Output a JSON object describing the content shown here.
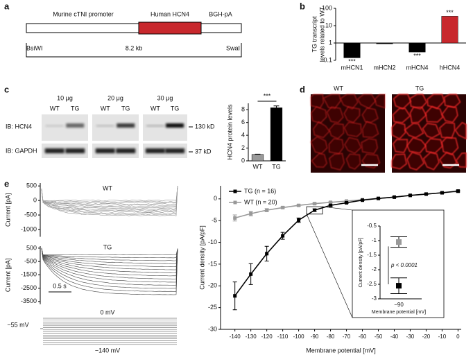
{
  "panel_labels": [
    "a",
    "b",
    "c",
    "d",
    "e"
  ],
  "construct": {
    "promoter": "Murine cTNI promoter",
    "gene": "Human HCN4",
    "polya": "BGH-pA",
    "site_left": "BsiWI",
    "length": "8.2 kb",
    "site_right": "SwaI"
  },
  "blot": {
    "amounts": [
      "10 μg",
      "20 μg",
      "30 μg"
    ],
    "lanes": [
      "WT",
      "TG",
      "WT",
      "TG",
      "WT",
      "TG"
    ],
    "probes": [
      "IB: HCN4",
      "IB: GAPDH"
    ],
    "sizes": [
      "130 kD",
      "37 kD"
    ]
  },
  "micrographs": {
    "labels": [
      "WT",
      "TG"
    ]
  },
  "traces": {
    "wt": {
      "label": "WT",
      "ylabel": "Current [pA]",
      "ylim": [
        -1250,
        600
      ],
      "yticks": [
        500,
        0,
        -500,
        -1000
      ]
    },
    "tg": {
      "label": "TG",
      "ylabel": "Current [pA]",
      "ylim": [
        -3700,
        650
      ],
      "yticks": [
        500,
        -500,
        -1500,
        -2500,
        -3500
      ]
    },
    "scale_bar": "0.5 s",
    "protocol": {
      "top": "0 mV",
      "hold": "−55 mV",
      "bottom": "−140 mV"
    }
  },
  "chart_data": [
    {
      "type": "bar",
      "log_scale": true,
      "ylabel": [
        "TG transcript",
        "levels related to WT"
      ],
      "categories": [
        "mHCN1",
        "mHCN2",
        "mHCN4",
        "hHCN4"
      ],
      "values": [
        0.14,
        0.9,
        0.3,
        35
      ],
      "colors": [
        "#000000",
        "#000000",
        "#000000",
        "#c8282d"
      ],
      "ylim": [
        0.1,
        100
      ],
      "yticks": [
        0.1,
        1,
        10,
        100
      ],
      "annotations": [
        {
          "label": "***",
          "category": "mHCN1"
        },
        {
          "label": "***",
          "category": "mHCN4"
        },
        {
          "label": "***",
          "category": "hHCN4"
        }
      ]
    },
    {
      "type": "bar",
      "ylabel": "HCN4 protein levels",
      "categories": [
        "WT",
        "TG"
      ],
      "values": [
        1,
        8.3
      ],
      "errors": [
        0.05,
        0.3
      ],
      "colors": [
        "#999999",
        "#000000"
      ],
      "ylim": [
        0,
        9
      ],
      "yticks": [
        0,
        2,
        4,
        6,
        8
      ],
      "annotations": [
        {
          "label": "***"
        }
      ]
    },
    {
      "type": "line",
      "xlabel": "Membrane potential [mV]",
      "ylabel": "Current density [pA/pF]",
      "x": [
        -140,
        -130,
        -120,
        -110,
        -100,
        -90,
        -80,
        -70,
        -60,
        -50,
        -40,
        -30,
        -20,
        -10,
        0
      ],
      "series": [
        {
          "name": "TG (n = 16)",
          "color": "#000000",
          "values": [
            -22.3,
            -17.3,
            -12.6,
            -8.5,
            -4.9,
            -2.6,
            -1.5,
            -0.9,
            -0.3,
            0.1,
            0.4,
            0.8,
            1.1,
            1.4,
            1.8
          ],
          "errors": [
            3.2,
            2.4,
            1.7,
            0.8,
            0.5,
            0.3,
            0.2,
            0.15,
            0.1,
            0.1,
            0.1,
            0.1,
            0.1,
            0.15,
            0.2
          ]
        },
        {
          "name": "WT (n = 20)",
          "color": "#999999",
          "values": [
            -4.4,
            -3.4,
            -2.6,
            -2.0,
            -1.5,
            -1.1,
            -0.8,
            -0.5,
            -0.2,
            0.1,
            0.4,
            0.8,
            1.1,
            1.4,
            1.7
          ],
          "errors": [
            0.7,
            0.5,
            0.35,
            0.25,
            0.2,
            0.2,
            0.15,
            0.1,
            0.1,
            0.1,
            0.1,
            0.1,
            0.1,
            0.15,
            0.2
          ]
        }
      ],
      "xlim": [
        -149,
        2
      ],
      "ylim": [
        -30,
        3
      ],
      "xticks": [
        -140,
        -130,
        -120,
        -110,
        -100,
        -90,
        -80,
        -70,
        -60,
        -50,
        -40,
        -30,
        -20,
        -10,
        0
      ],
      "yticks": [
        0,
        -5,
        -10,
        -15,
        -20,
        -25,
        -30
      ],
      "legend": "upper left"
    },
    {
      "type": "errorbar",
      "xlabel": "Membrane potential [mV]",
      "ylabel": "Current density [pA/pF]",
      "categories": [
        "−90"
      ],
      "series": [
        {
          "name": "WT",
          "color": "#999999",
          "values": [
            -1.05
          ],
          "errors": [
            0.18
          ]
        },
        {
          "name": "TG",
          "color": "#000000",
          "values": [
            -2.55
          ],
          "errors": [
            0.27
          ]
        }
      ],
      "ylim": [
        -3,
        -0.5
      ],
      "yticks": [
        -0.5,
        -1,
        -1.5,
        -2,
        -2.5,
        -3
      ],
      "annotation": "p < 0.0001"
    }
  ]
}
